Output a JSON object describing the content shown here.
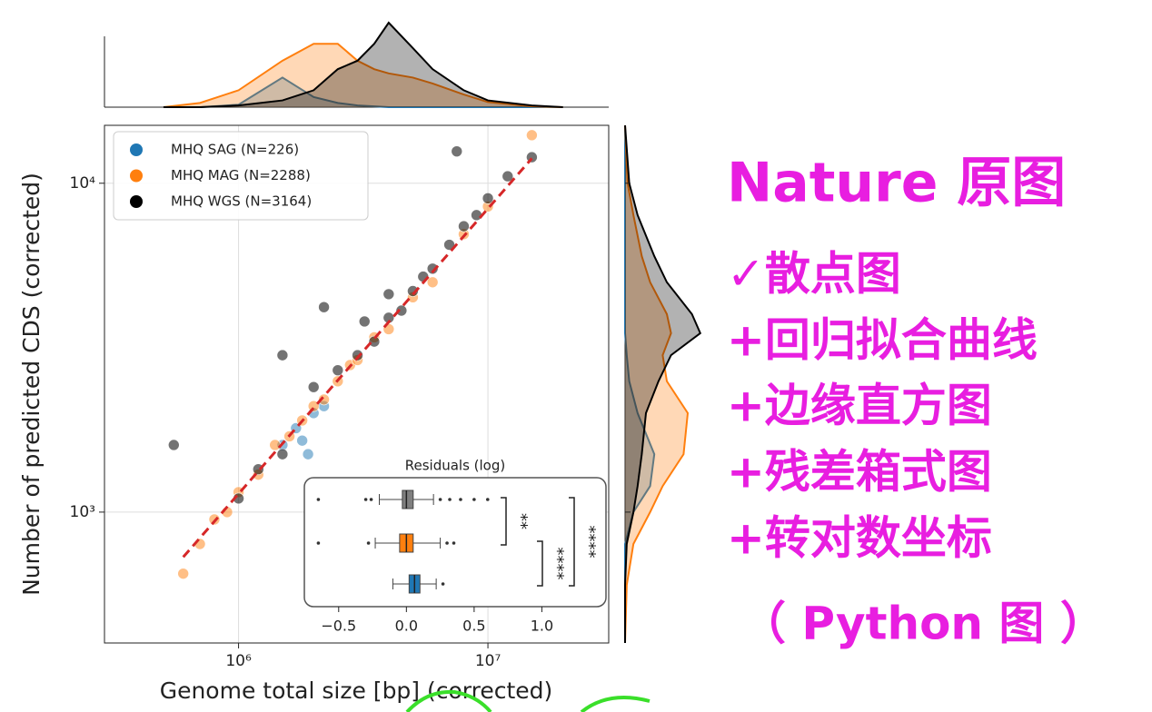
{
  "chart_data": {
    "type": "scatter",
    "xlabel": "Genome total size [bp] (corrected)",
    "ylabel": "Number of predicted CDS (corrected)",
    "log_x": true,
    "log_y": true,
    "grid": true,
    "legend": "upper left",
    "xlim": [
      290000,
      30500000
    ],
    "ylim": [
      400,
      15000
    ],
    "xticks": [
      {
        "value": 1000000,
        "label": "10⁶"
      },
      {
        "value": 10000000,
        "label": "10⁷"
      }
    ],
    "yticks": [
      {
        "value": 1000,
        "label": "10³"
      },
      {
        "value": 10000,
        "label": "10⁴"
      }
    ],
    "series": [
      {
        "name": "MHQ SAG (N=226)",
        "color": "#1f77b4",
        "x": [
          1500000,
          1700000,
          1800000,
          2000000,
          2200000,
          1900000
        ],
        "y": [
          1600,
          1800,
          1650,
          2000,
          2100,
          1500
        ]
      },
      {
        "name": "MHQ MAG (N=2288)",
        "color": "#ff7f0e",
        "x": [
          600000,
          700000,
          800000,
          900000,
          1000000,
          1200000,
          1400000,
          1600000,
          1800000,
          2000000,
          2200000,
          2500000,
          2800000,
          3000000,
          3500000,
          4000000,
          5000000,
          6000000,
          8000000,
          10000000,
          15000000
        ],
        "y": [
          650,
          800,
          950,
          1000,
          1150,
          1300,
          1600,
          1700,
          1900,
          2100,
          2200,
          2500,
          2800,
          2900,
          3400,
          3600,
          4500,
          5000,
          7000,
          8500,
          14000
        ]
      },
      {
        "name": "MHQ WGS (N=3164)",
        "color": "#000000",
        "x": [
          1000000,
          1200000,
          1500000,
          2000000,
          2500000,
          3000000,
          3200000,
          3500000,
          4000000,
          4000000,
          4500000,
          5000000,
          5500000,
          6000000,
          7000000,
          8000000,
          9000000,
          10000000,
          12000000,
          15000000,
          550000,
          1500000,
          7500000,
          2200000
        ],
        "y": [
          1100,
          1350,
          1500,
          2400,
          2700,
          3000,
          3800,
          3300,
          3900,
          4600,
          4100,
          4700,
          5200,
          5500,
          6500,
          7400,
          8000,
          9000,
          10500,
          12000,
          1600,
          3000,
          12500,
          4200
        ]
      }
    ],
    "fit_line": {
      "color": "#d62728",
      "x": [
        600000,
        15000000
      ],
      "y": [
        730,
        11900
      ]
    },
    "x_density": {
      "ylim": [
        0,
        1
      ],
      "x": [
        500000,
        700000,
        1000000,
        1500000,
        2000000,
        2500000,
        3000000,
        3500000,
        4000000,
        5000000,
        6000000,
        8000000,
        10000000,
        15000000,
        20000000
      ],
      "values": [
        [
          0,
          0,
          0.03,
          0.35,
          0.12,
          0.05,
          0.02,
          0.01,
          0,
          0,
          0,
          0,
          0,
          0,
          0
        ],
        [
          0,
          0.05,
          0.2,
          0.55,
          0.75,
          0.75,
          0.55,
          0.45,
          0.4,
          0.35,
          0.28,
          0.15,
          0.06,
          0.01,
          0
        ],
        [
          0,
          0,
          0.02,
          0.08,
          0.2,
          0.45,
          0.55,
          0.75,
          1.0,
          0.7,
          0.45,
          0.2,
          0.08,
          0.02,
          0
        ]
      ]
    },
    "y_density": {
      "xlim": [
        0,
        1
      ],
      "y": [
        400,
        600,
        800,
        1000,
        1200,
        1500,
        2000,
        2500,
        3000,
        3500,
        4000,
        5000,
        6000,
        8000,
        10000,
        15000
      ],
      "values": [
        [
          0,
          0,
          0,
          0.1,
          0.3,
          0.35,
          0.15,
          0.05,
          0.02,
          0,
          0,
          0,
          0,
          0,
          0,
          0
        ],
        [
          0,
          0.02,
          0.1,
          0.3,
          0.45,
          0.7,
          0.75,
          0.5,
          0.45,
          0.55,
          0.5,
          0.3,
          0.2,
          0.1,
          0.03,
          0
        ],
        [
          0,
          0,
          0.02,
          0.1,
          0.15,
          0.2,
          0.25,
          0.4,
          0.55,
          0.9,
          0.8,
          0.5,
          0.35,
          0.15,
          0.05,
          0
        ]
      ]
    },
    "inset": {
      "type": "box",
      "title": "Residuals (log)",
      "xlim": [
        -0.74,
        1.46
      ],
      "xticks": [
        {
          "value": -0.5,
          "label": "−0.5"
        },
        {
          "value": 0,
          "label": "0.0"
        },
        0.5,
        {
          "value": 1,
          "label": "1.0"
        }
      ],
      "boxes": [
        {
          "color": "#7f7f7f",
          "whislo": -0.2,
          "q1": -0.03,
          "median": 0.0,
          "q3": 0.05,
          "whishi": 0.2,
          "fliers": [
            -0.65,
            -0.3,
            -0.26,
            0.25,
            0.32,
            0.4,
            0.5,
            0.6
          ]
        },
        {
          "color": "#ff7f0e",
          "whislo": -0.23,
          "q1": -0.05,
          "median": 0.0,
          "q3": 0.05,
          "whishi": 0.25,
          "fliers": [
            -0.65,
            -0.28,
            0.3,
            0.35
          ]
        },
        {
          "color": "#1f77b4",
          "whislo": -0.1,
          "q1": 0.02,
          "median": 0.06,
          "q3": 0.1,
          "whishi": 0.22,
          "fliers": [
            0.27
          ]
        }
      ],
      "significance": [
        {
          "label": "**",
          "from": 0,
          "to": 1
        },
        {
          "label": "****",
          "from": 1,
          "to": 2
        },
        {
          "label": "****",
          "from": 0,
          "to": 2
        }
      ]
    }
  },
  "side_text": [
    "Nature 原图",
    "✓散点图",
    "+回归拟合曲线",
    "+边缘直方图",
    "+残差箱式图",
    "+转对数坐标",
    "（ Python 图 ）"
  ]
}
